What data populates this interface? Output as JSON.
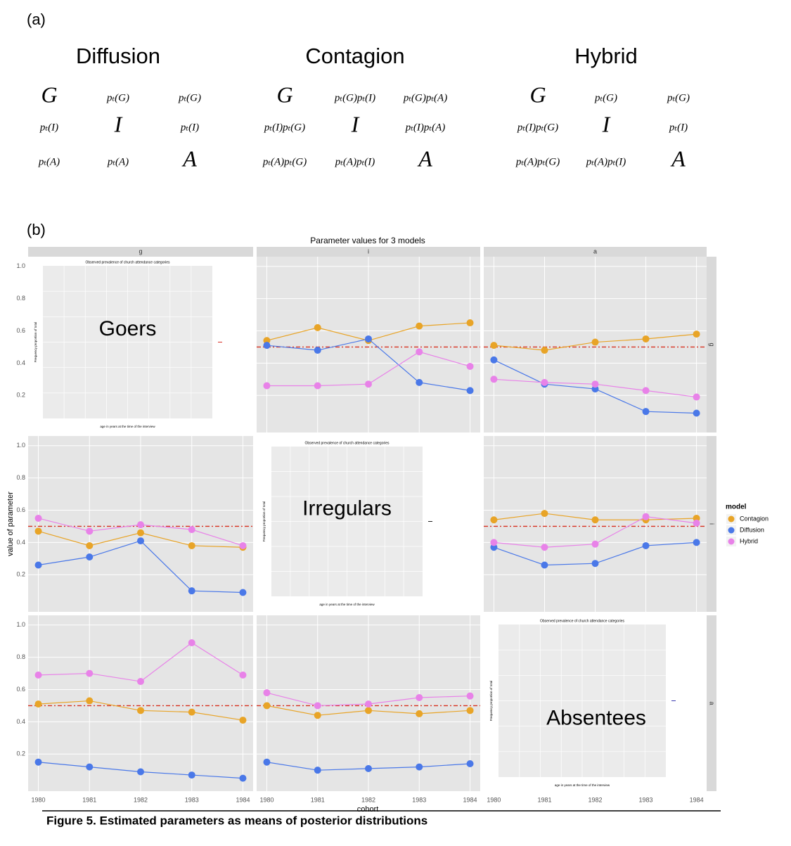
{
  "panel_a": {
    "label": "(a)",
    "models": [
      {
        "title": "Diffusion",
        "matrix": [
          [
            "G",
            "pₜ(G)",
            "pₜ(G)"
          ],
          [
            "pₜ(I)",
            "I",
            "pₜ(I)"
          ],
          [
            "pₜ(A)",
            "pₜ(A)",
            "A"
          ]
        ]
      },
      {
        "title": "Contagion",
        "matrix": [
          [
            "G",
            "pₜ(G)pₜ(I)",
            "pₜ(G)pₜ(A)"
          ],
          [
            "pₜ(I)pₜ(G)",
            "I",
            "pₜ(I)pₜ(A)"
          ],
          [
            "pₜ(A)pₜ(G)",
            "pₜ(A)pₜ(I)",
            "A"
          ]
        ]
      },
      {
        "title": "Hybrid",
        "matrix": [
          [
            "G",
            "pₜ(G)",
            "pₜ(G)"
          ],
          [
            "pₜ(I)pₜ(G)",
            "I",
            "pₜ(I)"
          ],
          [
            "pₜ(A)pₜ(G)",
            "pₜ(A)pₜ(I)",
            "A"
          ]
        ]
      }
    ]
  },
  "panel_b_label": "(b)",
  "chart_data": {
    "type": "line",
    "title": "Parameter values for 3 models",
    "xlabel": "cohort",
    "ylabel": "value of parameter",
    "x": [
      1980,
      1981,
      1982,
      1983,
      1984
    ],
    "xlim": [
      1979.8,
      1984.2
    ],
    "xticks": [
      1980,
      1981,
      1982,
      1983,
      1984
    ],
    "ylim": [
      -0.03,
      1.06
    ],
    "yticks": [
      0.2,
      0.4,
      0.6,
      0.8,
      {
        "value": 1,
        "label": "1.0"
      }
    ],
    "grid": true,
    "hline": 0.5,
    "hline_color": "#d7301f",
    "col_strips": [
      "g",
      "i",
      "a"
    ],
    "row_strips": [
      "g",
      "i",
      "a"
    ],
    "legend_title": "model",
    "legend": "right",
    "panels": [
      {
        "row": 0,
        "col": 0,
        "inset_title": "Observed prevalence of church attendance categories",
        "inset_xlabel": "age in years at the time of the interview",
        "inset_ylabel": "Frequency proportion of total",
        "label": "Goers",
        "inset_color": "#d73027"
      },
      {
        "row": 0,
        "col": 1,
        "series": [
          {
            "name": "Contagion",
            "color": "#e8a427",
            "values": [
              0.54,
              0.62,
              0.54,
              0.63,
              0.65
            ]
          },
          {
            "name": "Diffusion",
            "color": "#4a78e8",
            "values": [
              0.51,
              0.48,
              0.55,
              0.28,
              0.23
            ]
          },
          {
            "name": "Hybrid",
            "color": "#e882e8",
            "values": [
              0.26,
              0.26,
              0.27,
              0.47,
              0.38
            ]
          }
        ]
      },
      {
        "row": 0,
        "col": 2,
        "series": [
          {
            "name": "Contagion",
            "color": "#e8a427",
            "values": [
              0.51,
              0.48,
              0.53,
              0.55,
              0.58
            ]
          },
          {
            "name": "Diffusion",
            "color": "#4a78e8",
            "values": [
              0.42,
              0.27,
              0.24,
              0.1,
              0.09
            ]
          },
          {
            "name": "Hybrid",
            "color": "#e882e8",
            "values": [
              0.3,
              0.28,
              0.27,
              0.23,
              0.19
            ]
          }
        ]
      },
      {
        "row": 1,
        "col": 0,
        "series": [
          {
            "name": "Contagion",
            "color": "#e8a427",
            "values": [
              0.47,
              0.38,
              0.46,
              0.38,
              0.37
            ]
          },
          {
            "name": "Diffusion",
            "color": "#4a78e8",
            "values": [
              0.26,
              0.31,
              0.41,
              0.1,
              0.09
            ]
          },
          {
            "name": "Hybrid",
            "color": "#e882e8",
            "values": [
              0.55,
              0.47,
              0.51,
              0.48,
              0.38
            ]
          }
        ]
      },
      {
        "row": 1,
        "col": 1,
        "inset_title": "Observed prevalence of church attendance categories",
        "inset_xlabel": "age in years at the time of the interview",
        "inset_ylabel": "Frequency proportion of total",
        "label": "Irregulars",
        "inset_color": "#222222"
      },
      {
        "row": 1,
        "col": 2,
        "series": [
          {
            "name": "Contagion",
            "color": "#e8a427",
            "values": [
              0.54,
              0.58,
              0.54,
              0.54,
              0.55
            ]
          },
          {
            "name": "Diffusion",
            "color": "#4a78e8",
            "values": [
              0.37,
              0.26,
              0.27,
              0.38,
              0.4
            ]
          },
          {
            "name": "Hybrid",
            "color": "#e882e8",
            "values": [
              0.4,
              0.37,
              0.39,
              0.56,
              0.52
            ]
          }
        ]
      },
      {
        "row": 2,
        "col": 0,
        "series": [
          {
            "name": "Contagion",
            "color": "#e8a427",
            "values": [
              0.51,
              0.53,
              0.47,
              0.46,
              0.41
            ]
          },
          {
            "name": "Diffusion",
            "color": "#4a78e8",
            "values": [
              0.15,
              0.12,
              0.09,
              0.07,
              0.05
            ]
          },
          {
            "name": "Hybrid",
            "color": "#e882e8",
            "values": [
              0.69,
              0.7,
              0.65,
              0.89,
              0.69
            ]
          }
        ]
      },
      {
        "row": 2,
        "col": 1,
        "series": [
          {
            "name": "Contagion",
            "color": "#e8a427",
            "values": [
              0.5,
              0.44,
              0.47,
              0.45,
              0.47
            ]
          },
          {
            "name": "Diffusion",
            "color": "#4a78e8",
            "values": [
              0.15,
              0.1,
              0.11,
              0.12,
              0.14
            ]
          },
          {
            "name": "Hybrid",
            "color": "#e882e8",
            "values": [
              0.58,
              0.5,
              0.51,
              0.55,
              0.56
            ]
          }
        ]
      },
      {
        "row": 2,
        "col": 2,
        "inset_title": "Observed prevalence of church attendance categories",
        "inset_xlabel": "age in years at the time of the interview",
        "inset_ylabel": "Frequency proportion of total",
        "label": "Absentees",
        "inset_color": "#3b3bb0"
      }
    ]
  },
  "caption": "Figure 5. Estimated parameters as means of posterior distributions"
}
